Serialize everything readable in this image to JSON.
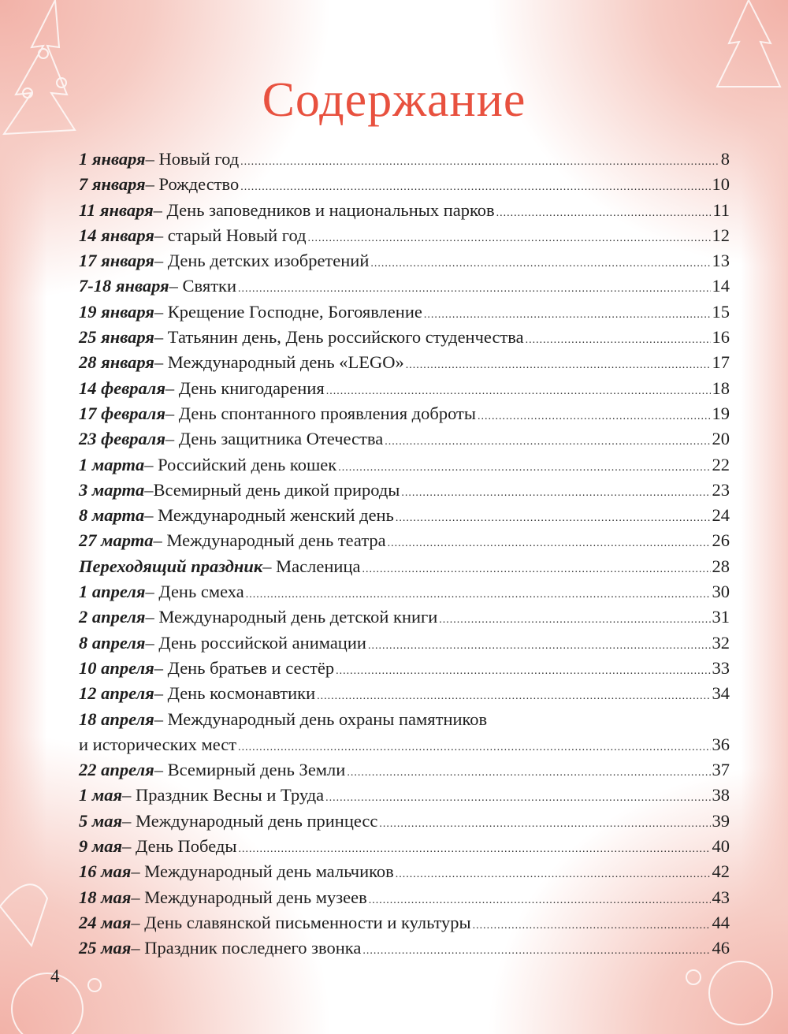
{
  "title": "Содержание",
  "page_number": "4",
  "colors": {
    "title": "#e8513f",
    "corner_decoration": "#f2b2a8"
  },
  "entries": [
    {
      "date": "1 января",
      "text": " – Новый год",
      "page": "8"
    },
    {
      "date": "7 января",
      "text": " – Рождество",
      "page": "10"
    },
    {
      "date": "11 января",
      "text": " – День заповедников и национальных парков",
      "page": "11"
    },
    {
      "date": "14 января",
      "text": " – старый Новый год",
      "page": "12"
    },
    {
      "date": "17 января",
      "text": " – День детских изобретений",
      "page": "13"
    },
    {
      "date": "7-18 января",
      "text": " – Святки",
      "page": "14"
    },
    {
      "date": "19 января",
      "text": " – Крещение Господне, Богоявление",
      "page": "15"
    },
    {
      "date": "25 января",
      "text": " – Татьянин день, День российского студенчества",
      "page": "16"
    },
    {
      "date": "28 января",
      "text": " – Международный день «LEGO»",
      "page": "17"
    },
    {
      "date": "14 февраля",
      "text": " – День книгодарения",
      "page": "18"
    },
    {
      "date": "17 февраля",
      "text": " – День спонтанного проявления доброты",
      "page": "19"
    },
    {
      "date": "23 февраля",
      "text": " – День защитника Отечества",
      "page": "20"
    },
    {
      "date": "1 марта",
      "text": " – Российский день кошек",
      "page": "22"
    },
    {
      "date": "3 марта",
      "text": " –Всемирный день дикой природы",
      "page": "23"
    },
    {
      "date": "8 марта",
      "text": " – Международный женский день",
      "page": "24"
    },
    {
      "date": "27 марта",
      "text": " – Международный день театра",
      "page": "26"
    },
    {
      "date": "Переходящий праздник",
      "text": " – Масленица",
      "page": "28"
    },
    {
      "date": "1 апреля",
      "text": " – День смеха",
      "page": "30"
    },
    {
      "date": "2 апреля",
      "text": " – Международный день детской книги",
      "page": "31"
    },
    {
      "date": "8 апреля",
      "text": " – День российской анимации",
      "page": "32"
    },
    {
      "date": "10 апреля",
      "text": " – День братьев и сестёр",
      "page": "33"
    },
    {
      "date": "12 апреля",
      "text": " – День космонавтики",
      "page": "34"
    },
    {
      "date": "18 апреля",
      "text": " – Международный день охраны памятников",
      "text2": "и исторических мест",
      "page": "36"
    },
    {
      "date": "22 апреля",
      "text": " – Всемирный день Земли",
      "page": "37"
    },
    {
      "date": "1 мая",
      "text": " – Праздник Весны и Труда",
      "page": "38"
    },
    {
      "date": "5 мая",
      "text": " – Международный день принцесс",
      "page": "39"
    },
    {
      "date": "9 мая",
      "text": " – День Победы",
      "page": "40"
    },
    {
      "date": "16 мая",
      "text": " – Международный день мальчиков",
      "page": "42"
    },
    {
      "date": "18 мая",
      "text": " – Международный день музеев",
      "page": "43"
    },
    {
      "date": "24 мая",
      "text": " – День славянской письменности и культуры",
      "page": "44"
    },
    {
      "date": "25 мая",
      "text": " – Праздник последнего звонка",
      "page": "46"
    }
  ]
}
